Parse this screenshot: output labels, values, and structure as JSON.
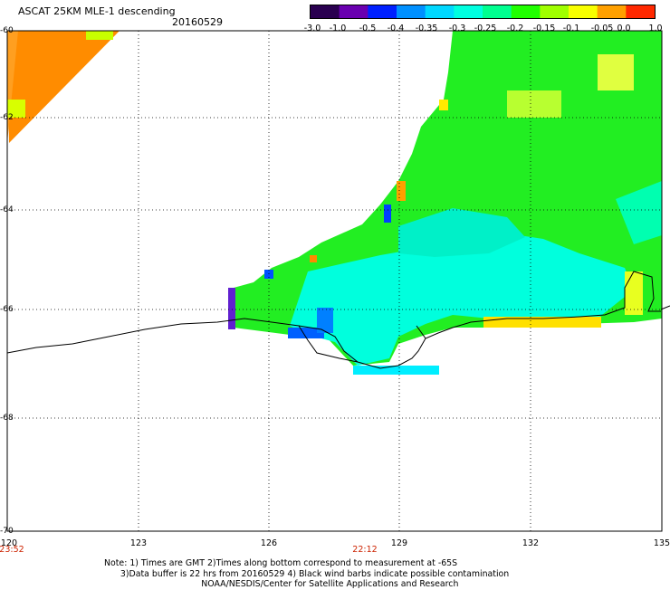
{
  "title": "ASCAT 25KM MLE-1 descending",
  "date": "20160529",
  "colorbar": {
    "labels": [
      "-3.0",
      "-1.0",
      "-0.5",
      "-0.4",
      "-0.35",
      "-0.3",
      "-0.25",
      "-0.2",
      "-0.15",
      "-0.1",
      "-0.05",
      "0.0",
      "1.0"
    ],
    "colors": [
      "#2a0050",
      "#6a00b0",
      "#0020ff",
      "#0090ff",
      "#00d8ff",
      "#00ffe0",
      "#00ff90",
      "#20ff00",
      "#a0ff00",
      "#f8ff00",
      "#ffa000",
      "#ff2800"
    ]
  },
  "axes": {
    "latitudes": [
      "-60",
      "-62",
      "-64",
      "-66",
      "-68",
      "-70"
    ],
    "longitudes": [
      "120",
      "123",
      "126",
      "129",
      "132",
      "135"
    ]
  },
  "times": [
    "23:52",
    "22:12"
  ],
  "note": "Note: 1) Times are GMT 2)Times along bottom correspond to measurement at -65S\n      3)Data buffer is 22 hrs from 20160529 4) Black wind barbs indicate possible contamination\n                                    NOAA/NESDIS/Center for Satellite Applications and Research",
  "colors": {
    "orange": "#ff8c00",
    "green": "#22ee22",
    "cyan": "#00ffdd",
    "coast": "#000000"
  }
}
